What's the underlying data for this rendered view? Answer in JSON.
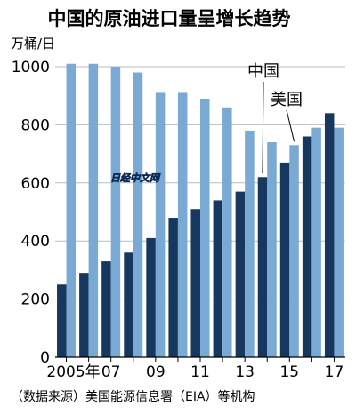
{
  "chart_data": {
    "type": "bar",
    "title": "中国的原油进口量呈增长趋势",
    "unit_label": "万桶/日",
    "source": "（数据来源）美国能源信息署（EIA）等机构",
    "watermark": "日经中文网",
    "x": [
      2005,
      2006,
      2007,
      2008,
      2009,
      2010,
      2011,
      2012,
      2013,
      2014,
      2015,
      2016,
      2017
    ],
    "x_tick_labels": [
      "2005年",
      "",
      "07",
      "",
      "09",
      "",
      "11",
      "",
      "13",
      "",
      "15",
      "",
      "17"
    ],
    "ylim": [
      0,
      1000
    ],
    "yticks": [
      0,
      200,
      400,
      600,
      800,
      1000
    ],
    "series": [
      {
        "name": "中国",
        "color": "#16385f",
        "values": [
          250,
          290,
          330,
          360,
          410,
          480,
          510,
          540,
          570,
          620,
          670,
          760,
          840
        ]
      },
      {
        "name": "美国",
        "color": "#7aaad4",
        "values": [
          1010,
          1010,
          1000,
          980,
          910,
          910,
          890,
          860,
          780,
          740,
          730,
          790,
          790
        ]
      }
    ]
  }
}
